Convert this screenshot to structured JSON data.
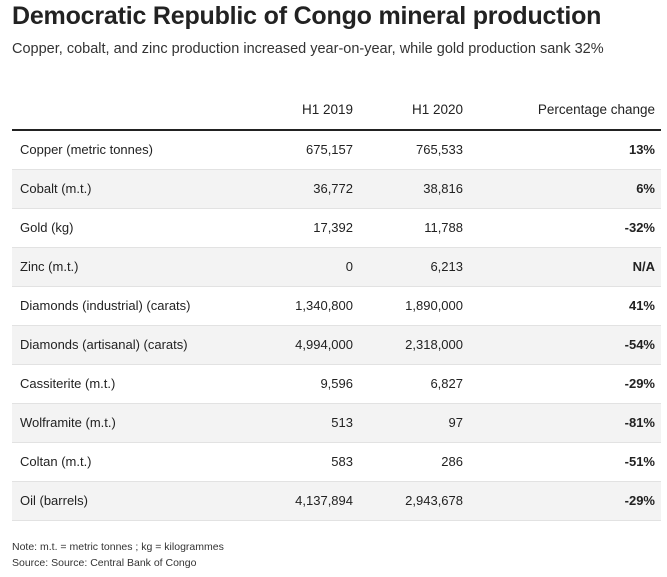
{
  "title": "Democratic Republic of Congo mineral production",
  "subtitle": "Copper, cobalt, and zinc production increased year-on-year, while gold production sank 32%",
  "table": {
    "headers": {
      "label": "",
      "h1_2019": "H1 2019",
      "h1_2020": "H1 2020",
      "change": "Percentage change"
    },
    "rows": [
      {
        "label": "Copper (metric tonnes)",
        "h1_2019": "675,157",
        "h1_2020": "765,533",
        "change": "13%"
      },
      {
        "label": "Cobalt (m.t.)",
        "h1_2019": "36,772",
        "h1_2020": "38,816",
        "change": "6%"
      },
      {
        "label": "Gold (kg)",
        "h1_2019": "17,392",
        "h1_2020": "11,788",
        "change": "-32%"
      },
      {
        "label": "Zinc (m.t.)",
        "h1_2019": "0",
        "h1_2020": "6,213",
        "change": "N/A"
      },
      {
        "label": "Diamonds (industrial) (carats)",
        "h1_2019": "1,340,800",
        "h1_2020": "1,890,000",
        "change": "41%"
      },
      {
        "label": "Diamonds (artisanal) (carats)",
        "h1_2019": "4,994,000",
        "h1_2020": "2,318,000",
        "change": "-54%"
      },
      {
        "label": "Cassiterite (m.t.)",
        "h1_2019": "9,596",
        "h1_2020": "6,827",
        "change": "-29%"
      },
      {
        "label": "Wolframite (m.t.)",
        "h1_2019": "513",
        "h1_2020": "97",
        "change": "-81%"
      },
      {
        "label": "Coltan (m.t.)",
        "h1_2019": "583",
        "h1_2020": "286",
        "change": "-51%"
      },
      {
        "label": "Oil (barrels)",
        "h1_2019": "4,137,894",
        "h1_2020": "2,943,678",
        "change": "-29%"
      }
    ]
  },
  "notes": {
    "note": "Note: m.t. = metric tonnes ; kg = kilogrammes",
    "source": "Source: Source: Central Bank of Congo"
  },
  "colors": {
    "text": "#222222",
    "row_shade": "#f3f3f3",
    "header_rule": "#222222"
  }
}
